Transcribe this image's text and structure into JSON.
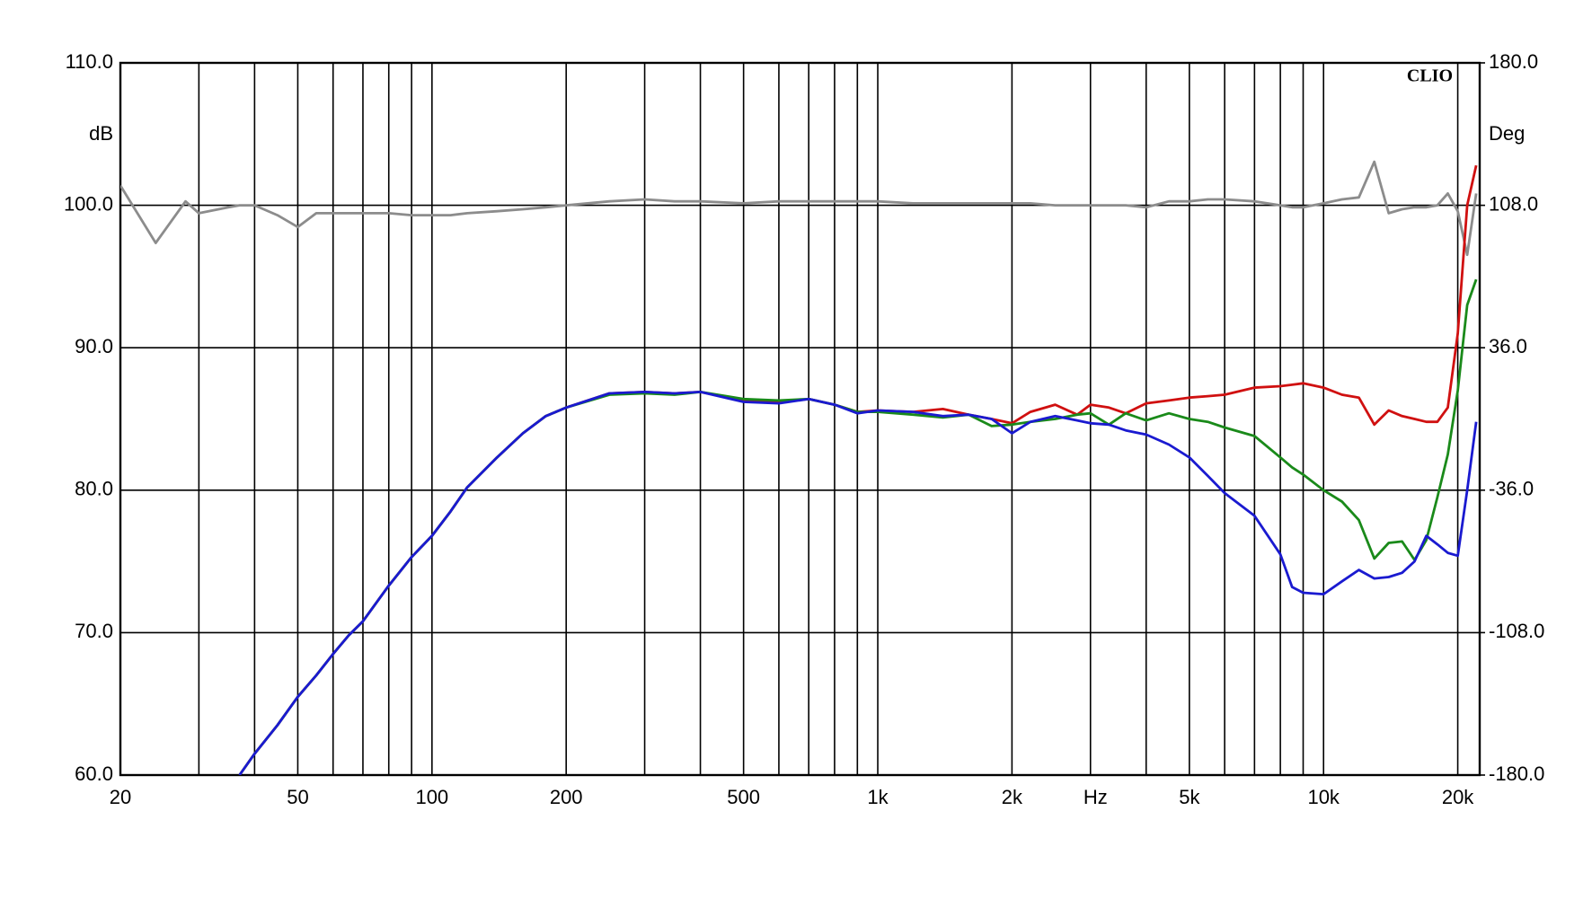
{
  "chart_data": {
    "type": "line",
    "brand": "CLIO",
    "ylabel": "dB",
    "y2label": "Deg",
    "xlabel": "Hz",
    "xscale": "log",
    "grid": true,
    "xlim": [
      20,
      22400
    ],
    "ylim": [
      60,
      110
    ],
    "y2lim": [
      -180,
      180
    ],
    "xticks": [
      20,
      50,
      100,
      200,
      500,
      {
        "value": 1000,
        "label": "1k"
      },
      {
        "value": 2000,
        "label": "2k"
      },
      {
        "value": 5000,
        "label": "5k"
      },
      {
        "value": 10000,
        "label": "10k"
      },
      {
        "value": 20000,
        "label": "20k"
      }
    ],
    "xgrid": [
      20,
      30,
      40,
      50,
      60,
      70,
      80,
      90,
      100,
      200,
      300,
      400,
      500,
      600,
      700,
      800,
      900,
      1000,
      2000,
      3000,
      4000,
      5000,
      6000,
      7000,
      8000,
      9000,
      10000,
      20000
    ],
    "yticks": [
      {
        "value": 60,
        "label": "60.0"
      },
      {
        "value": 70,
        "label": "70.0"
      },
      {
        "value": 80,
        "label": "80.0"
      },
      {
        "value": 90,
        "label": "90.0"
      },
      {
        "value": 100,
        "label": "100.0"
      },
      {
        "value": 110,
        "label": "110.0"
      }
    ],
    "y2ticks": [
      {
        "value": -180,
        "label": "-180.0"
      },
      {
        "value": -108,
        "label": "-108.0"
      },
      {
        "value": -36,
        "label": "-36.0"
      },
      {
        "value": 36,
        "label": "36.0"
      },
      {
        "value": 108,
        "label": "108.0"
      },
      {
        "value": 180,
        "label": "180.0"
      }
    ],
    "x": [
      20,
      24,
      28,
      30,
      35,
      37,
      40,
      45,
      50,
      55,
      60,
      65,
      70,
      80,
      90,
      100,
      110,
      120,
      140,
      160,
      180,
      200,
      250,
      300,
      350,
      400,
      500,
      600,
      700,
      800,
      900,
      1000,
      1200,
      1400,
      1600,
      1800,
      2000,
      2200,
      2500,
      2800,
      3000,
      3300,
      3600,
      4000,
      4500,
      5000,
      5500,
      6000,
      7000,
      8000,
      8500,
      9000,
      10000,
      11000,
      12000,
      13000,
      14000,
      15000,
      16000,
      17000,
      18000,
      19000,
      20000,
      21000,
      22000
    ],
    "series": [
      {
        "color": "#8c8c8c",
        "axis": "y2",
        "values": [
          118,
          89,
          110,
          104,
          107,
          108,
          108,
          103,
          97,
          104,
          104,
          104,
          104,
          104,
          103,
          103,
          103,
          104,
          105,
          106,
          107,
          108,
          110,
          111,
          110,
          110,
          109,
          110,
          110,
          110,
          110,
          110,
          109,
          109,
          109,
          109,
          109,
          109,
          108,
          108,
          108,
          108,
          108,
          107,
          110,
          110,
          111,
          111,
          110,
          108,
          107,
          107,
          109,
          111,
          112,
          130,
          104,
          106,
          107,
          107,
          108,
          114,
          105,
          83,
          114
        ]
      },
      {
        "color": "#d01010",
        "values": [
          null,
          null,
          null,
          null,
          null,
          60,
          61.5,
          63.5,
          65.5,
          67,
          68.5,
          69.8,
          70.8,
          73.3,
          75.3,
          76.8,
          78.5,
          80.2,
          82.3,
          84,
          85.2,
          85.8,
          86.8,
          86.9,
          86.8,
          86.9,
          86.3,
          86.2,
          86.4,
          86,
          85.5,
          85.6,
          85.5,
          85.7,
          85.3,
          85,
          84.7,
          85.5,
          86,
          85.3,
          86,
          85.8,
          85.4,
          86.1,
          86.3,
          86.5,
          86.6,
          86.7,
          87.2,
          87.3,
          87.4,
          87.5,
          87.2,
          86.7,
          86.5,
          84.6,
          85.6,
          85.2,
          85,
          84.8,
          84.8,
          85.8,
          91,
          100,
          102.8
        ]
      },
      {
        "color": "#1a8a1a",
        "values": [
          null,
          null,
          null,
          null,
          null,
          60,
          61.5,
          63.5,
          65.5,
          67,
          68.5,
          69.8,
          70.8,
          73.3,
          75.3,
          76.8,
          78.5,
          80.2,
          82.3,
          84,
          85.2,
          85.8,
          86.7,
          86.8,
          86.7,
          86.9,
          86.4,
          86.3,
          86.4,
          86,
          85.5,
          85.5,
          85.3,
          85.1,
          85.3,
          84.5,
          84.6,
          84.8,
          85,
          85.3,
          85.4,
          84.6,
          85.4,
          84.9,
          85.4,
          85,
          84.8,
          84.4,
          83.8,
          82.3,
          81.6,
          81.1,
          80,
          79.2,
          77.9,
          75.2,
          76.3,
          76.4,
          75.1,
          76.5,
          79.5,
          82.5,
          87,
          93,
          94.8
        ]
      },
      {
        "color": "#1a1ad0",
        "values": [
          null,
          null,
          null,
          null,
          null,
          60,
          61.5,
          63.5,
          65.5,
          67,
          68.5,
          69.8,
          70.8,
          73.3,
          75.3,
          76.8,
          78.5,
          80.2,
          82.3,
          84,
          85.2,
          85.8,
          86.8,
          86.9,
          86.8,
          86.9,
          86.2,
          86.1,
          86.4,
          86,
          85.4,
          85.6,
          85.5,
          85.2,
          85.3,
          85,
          84,
          84.8,
          85.2,
          84.9,
          84.7,
          84.6,
          84.2,
          83.9,
          83.2,
          82.3,
          81,
          79.8,
          78.2,
          75.5,
          73.2,
          72.8,
          72.7,
          73.6,
          74.4,
          73.8,
          73.9,
          74.2,
          75,
          76.8,
          76.2,
          75.6,
          75.4,
          80,
          84.8
        ]
      }
    ]
  }
}
